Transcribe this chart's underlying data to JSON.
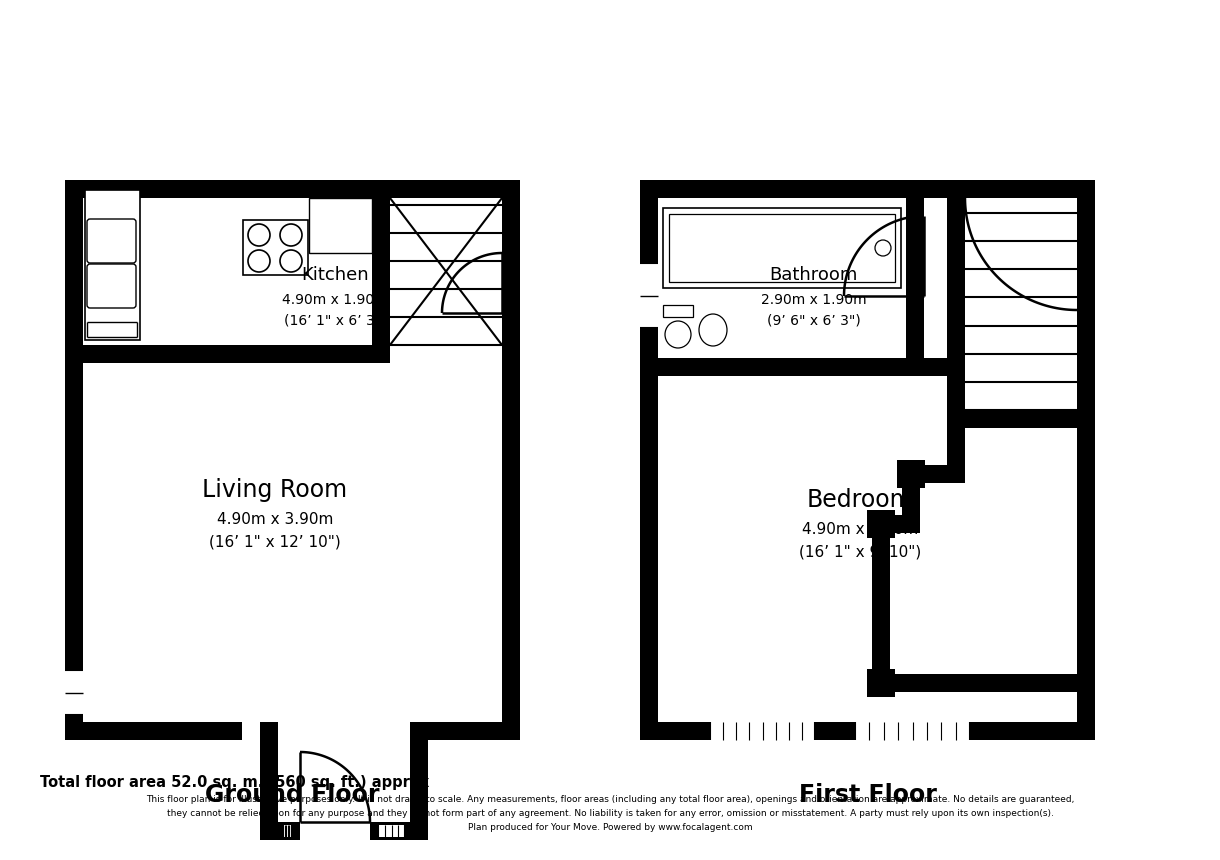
{
  "bg_color": "#ffffff",
  "title_ground": "Ground Floor",
  "title_first": "First Floor",
  "kitchen_label": "Kitchen",
  "kitchen_dims": "4.90m x 1.90m",
  "kitchen_dims2": "(16’ 1\" x 6’ 3\")",
  "living_label": "Living Room",
  "living_dims": "4.90m x 3.90m",
  "living_dims2": "(16’ 1\" x 12’ 10\")",
  "bathroom_label": "Bathroom",
  "bathroom_dims": "2.90m x 1.90m",
  "bathroom_dims2": "(9’ 6\" x 6’ 3\")",
  "bedroom_label": "Bedroom",
  "bedroom_dims": "4.90m x 3.00m",
  "bedroom_dims2": "(16’ 1\" x 9’ 10\")",
  "footer_main": "Total floor area 52.0 sq. m. (560 sq. ft.) approx",
  "footer_line1": "This floor plan is for illustrative purposes only. It is not drawn to scale. Any measurements, floor areas (including any total floor area), openings and orientation are approximate. No details are guaranteed,",
  "footer_line2": "they cannot be relied upon for any purpose and they do not form part of any agreement. No liability is taken for any error, omission or misstatement. A party must rely upon its own inspection(s).",
  "footer_line3": "Plan produced for Your Move. Powered by www.focalagent.com"
}
